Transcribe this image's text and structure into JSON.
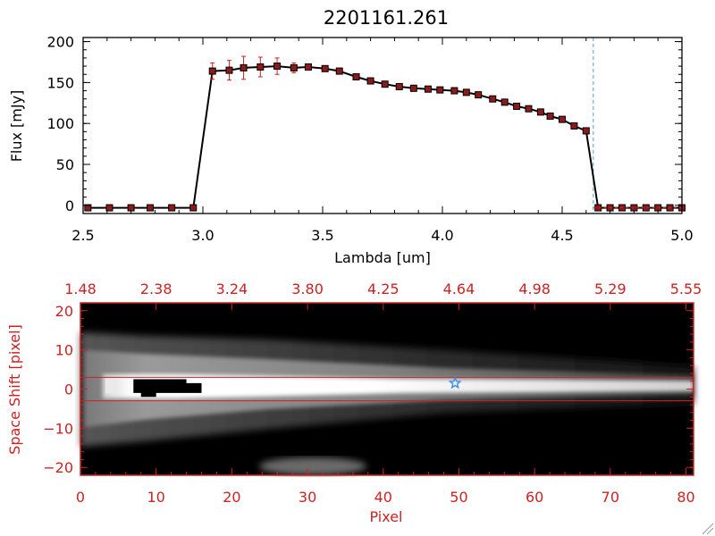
{
  "colors": {
    "frame_top": "#000000",
    "frame_bottom": "#cc2222",
    "marker_fill": "#8b1a1a",
    "error_bar": "#cc2222",
    "cutoff_line": "#4a9fe0",
    "star": "#3a8fe8",
    "band_line": "#cc2222"
  },
  "chart_data": [
    {
      "type": "line",
      "title": "2201161.261",
      "xlabel": "Lambda [um]",
      "ylabel": "Flux [mJy]",
      "xlim": [
        2.5,
        5.0
      ],
      "ylim": [
        -10,
        205
      ],
      "xticks": [
        2.5,
        3.0,
        3.5,
        4.0,
        4.5,
        5.0
      ],
      "xtick_labels": [
        "2.5",
        "3.0",
        "3.5",
        "4.0",
        "4.5",
        "5.0"
      ],
      "yticks": [
        0,
        50,
        100,
        150,
        200
      ],
      "ytick_labels": [
        "0",
        "50",
        "100",
        "150",
        "200"
      ],
      "cutoff_line_x": 4.63,
      "series": [
        {
          "x": [
            2.52,
            2.61,
            2.7,
            2.78,
            2.87,
            2.96,
            3.04,
            3.11,
            3.17,
            3.24,
            3.31,
            3.38,
            3.44,
            3.51,
            3.57,
            3.64,
            3.7,
            3.76,
            3.82,
            3.88,
            3.94,
            3.99,
            4.05,
            4.1,
            4.15,
            4.21,
            4.26,
            4.31,
            4.36,
            4.41,
            4.45,
            4.5,
            4.55,
            4.6,
            4.65,
            4.7,
            4.75,
            4.8,
            4.85,
            4.9,
            4.95,
            5.0
          ],
          "y": [
            -3,
            -3,
            -3,
            -3,
            -3,
            -3,
            164,
            165,
            168,
            169,
            170,
            168,
            169,
            167,
            164,
            157,
            152,
            148,
            145,
            143,
            142,
            141,
            140,
            138,
            135,
            130,
            126,
            121,
            118,
            114,
            109,
            105,
            97,
            91,
            -3,
            -3,
            -3,
            -3,
            -3,
            -3,
            -3,
            -3
          ],
          "yerr": [
            0,
            0,
            0,
            0,
            0,
            0,
            10,
            12,
            14,
            12,
            10,
            6,
            3,
            0,
            0,
            0,
            0,
            0,
            0,
            0,
            0,
            0,
            0,
            0,
            0,
            0,
            0,
            0,
            0,
            0,
            0,
            0,
            0,
            0,
            0,
            0,
            0,
            0,
            0,
            0,
            0,
            0
          ]
        }
      ]
    },
    {
      "type": "heatmap",
      "xlabel": "Pixel",
      "ylabel": "Space Shift [pixel]",
      "xlim": [
        0,
        81
      ],
      "ylim": [
        -22,
        22
      ],
      "xticks": [
        0,
        10,
        20,
        30,
        40,
        50,
        60,
        70,
        80
      ],
      "xtick_labels": [
        "0",
        "10",
        "20",
        "30",
        "40",
        "50",
        "60",
        "70",
        "80"
      ],
      "top_tick_labels": [
        "1.48",
        "2.38",
        "3.24",
        "3.80",
        "4.25",
        "4.64",
        "4.98",
        "5.29",
        "5.55"
      ],
      "yticks": [
        -20,
        -10,
        0,
        10,
        20
      ],
      "ytick_labels": [
        "−20",
        "−10",
        "0",
        "10",
        "20"
      ],
      "band_lines_y": [
        3,
        -3
      ],
      "star": {
        "x": 49.5,
        "y": 1.5
      },
      "saturated_region": {
        "x_range": [
          7,
          16
        ],
        "y_range": [
          -2,
          2.5
        ]
      }
    }
  ]
}
